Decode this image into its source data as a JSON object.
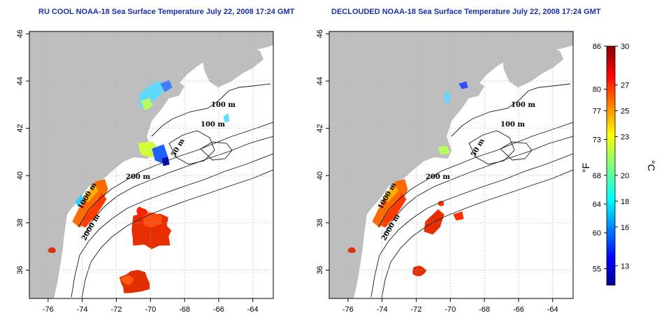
{
  "panels": [
    {
      "title": "RU COOL NOAA-18 Sea Surface Temperature July 22, 2008 17:24 GMT",
      "variant": "cool"
    },
    {
      "title": "DECLOUDED NOAA-18 Sea Surface Temperature July 22, 2008 17:24 GMT",
      "variant": "declouded"
    }
  ],
  "map": {
    "lon_ticks": [
      "-76",
      "-74",
      "-72",
      "-70",
      "-68",
      "-66",
      "-64"
    ],
    "lat_ticks": [
      "46",
      "44",
      "42",
      "40",
      "38",
      "36"
    ],
    "lon_range": [
      -77.1,
      -62.8
    ],
    "lat_range": [
      34.8,
      46.1
    ],
    "grid": "dotted",
    "land_color": "#bebebe",
    "contour_labels": [
      "100 m",
      "100 m",
      "50 m",
      "200 m",
      "1000 m",
      "2000 m"
    ]
  },
  "colorbar": {
    "fahrenheit_ticks": [
      "86",
      "80",
      "77",
      "73",
      "68",
      "64",
      "60",
      "55"
    ],
    "celsius_ticks": [
      "30",
      "27",
      "25",
      "23",
      "20",
      "18",
      "16",
      "13"
    ],
    "fahrenheit_unit": "°F",
    "celsius_unit": "°C",
    "range_c": [
      11.5,
      30
    ]
  }
}
